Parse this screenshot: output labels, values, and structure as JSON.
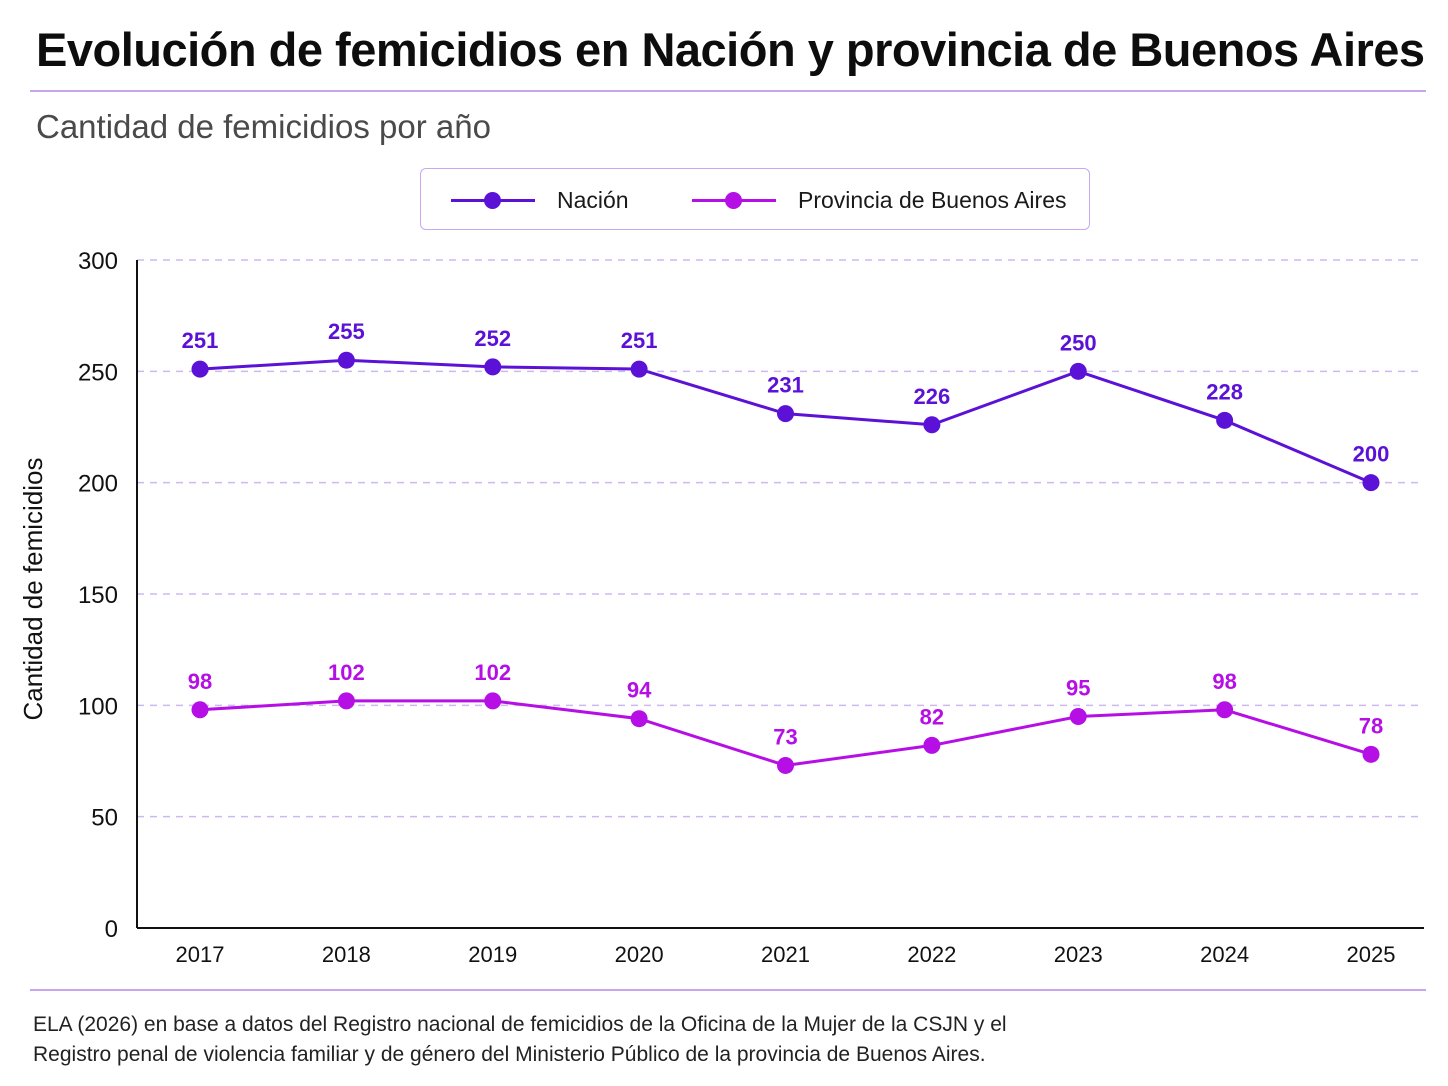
{
  "header": {
    "title": "Evolución de femicidios en Nación y provincia de Buenos Aires",
    "subtitle": "Cantidad de femicidios por año"
  },
  "footer": {
    "source_line1": "ELA (2026) en base a datos del Registro nacional de femicidios de la Oficina de la Mujer de la CSJN y el",
    "source_line2": "Registro penal de violencia familiar y de género del Ministerio Público de la provincia de Buenos Aires."
  },
  "colors": {
    "nacion": "#5b12d6",
    "provincia": "#b60fe6",
    "grid": "#cdb8f2",
    "rule": "#c9a5ee"
  },
  "chart_data": {
    "type": "line",
    "title": "Evolución de femicidios en Nación y provincia de Buenos Aires",
    "subtitle": "Cantidad de femicidios por año",
    "xlabel": "",
    "ylabel": "Cantidad de femicidios",
    "categories": [
      "2017",
      "2018",
      "2019",
      "2020",
      "2021",
      "2022",
      "2023",
      "2024",
      "2025"
    ],
    "ylim": [
      0,
      300
    ],
    "yticks": [
      0,
      50,
      100,
      150,
      200,
      250,
      300
    ],
    "grid": "horizontal dashed",
    "legend": "top-center",
    "series": [
      {
        "name": "Nación",
        "values": [
          251,
          255,
          252,
          251,
          231,
          226,
          250,
          228,
          200
        ]
      },
      {
        "name": "Provincia de Buenos Aires",
        "values": [
          98,
          102,
          102,
          94,
          73,
          82,
          95,
          98,
          78
        ]
      }
    ]
  }
}
